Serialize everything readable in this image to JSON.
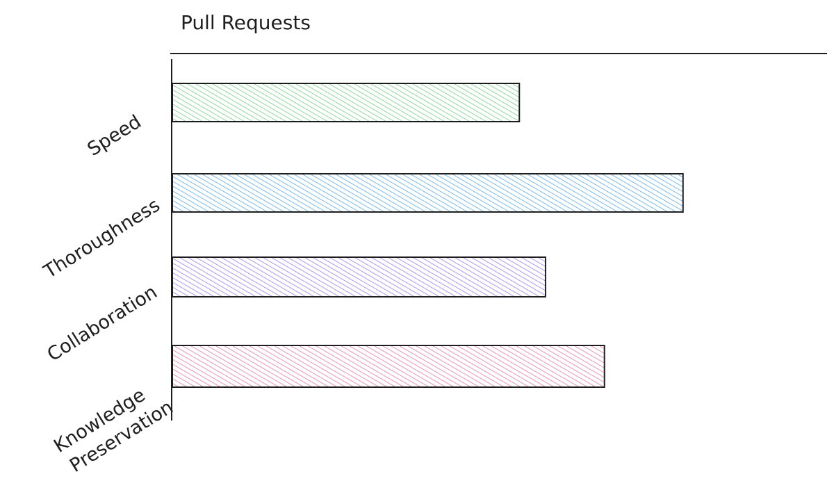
{
  "chart_data": {
    "type": "bar",
    "orientation": "horizontal",
    "style": "hand-drawn hatched",
    "title": "Pull Requests",
    "categories": [
      "Speed",
      "Thoroughness",
      "Collaboration",
      "Knowledge Preservation"
    ],
    "values": [
      0.53,
      0.78,
      0.57,
      0.66
    ],
    "xlim": [
      0,
      1
    ],
    "colors": [
      "#40c057",
      "#228be6",
      "#7950f2",
      "#e64980"
    ],
    "grid": false,
    "legend": "none",
    "xlabel": "",
    "ylabel": ""
  }
}
